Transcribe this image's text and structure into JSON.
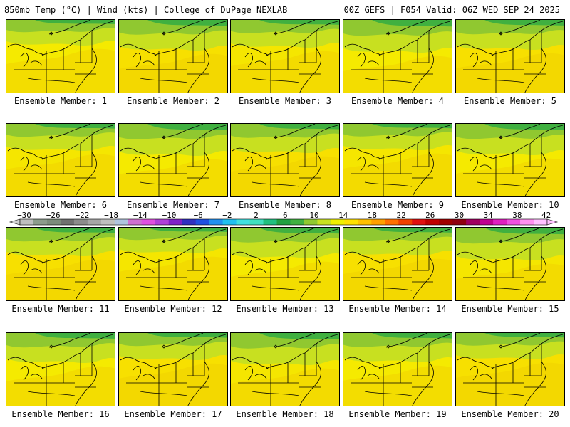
{
  "header": {
    "left_title": "850mb Temp (°C) | Wind (kts) | College of DuPage NEXLAB",
    "right_title": "00Z GEFS | F054 Valid: 06Z WED SEP 24 2025"
  },
  "colorbar": {
    "ticks": [
      "−30",
      "−26",
      "−22",
      "−18",
      "−14",
      "−10",
      "−6",
      "−2",
      "2",
      "6",
      "10",
      "14",
      "18",
      "22",
      "26",
      "30",
      "34",
      "38",
      "42"
    ],
    "colors": [
      "#bfbfbf",
      "#8c9c8c",
      "#7c8c7c",
      "#707070",
      "#8c8c8c",
      "#a6a6a6",
      "#bfbfbf",
      "#b0c4de",
      "#d070d0",
      "#e050e0",
      "#b040d8",
      "#8020c8",
      "#3030c0",
      "#2050e0",
      "#2090f0",
      "#20c0f0",
      "#40e0e0",
      "#40e0c0",
      "#20c080",
      "#20a040",
      "#40b040",
      "#90c830",
      "#c8e020",
      "#f0f000",
      "#ffe000",
      "#ffc000",
      "#ffa000",
      "#ff7000",
      "#f04000",
      "#e01010",
      "#c00000",
      "#a00000",
      "#900010",
      "#a00060",
      "#c00090",
      "#e020c0",
      "#f050e0",
      "#ff90f0",
      "#ffc0ff"
    ]
  },
  "panels": [
    {
      "label": "Ensemble Member: 1"
    },
    {
      "label": "Ensemble Member: 2"
    },
    {
      "label": "Ensemble Member: 3"
    },
    {
      "label": "Ensemble Member: 4"
    },
    {
      "label": "Ensemble Member: 5"
    },
    {
      "label": "Ensemble Member: 6"
    },
    {
      "label": "Ensemble Member: 7"
    },
    {
      "label": "Ensemble Member: 8"
    },
    {
      "label": "Ensemble Member: 9"
    },
    {
      "label": "Ensemble Member: 10"
    },
    {
      "label": "Ensemble Member: 11"
    },
    {
      "label": "Ensemble Member: 12"
    },
    {
      "label": "Ensemble Member: 13"
    },
    {
      "label": "Ensemble Member: 14"
    },
    {
      "label": "Ensemble Member: 15"
    },
    {
      "label": "Ensemble Member: 16"
    },
    {
      "label": "Ensemble Member: 17"
    },
    {
      "label": "Ensemble Member: 18"
    },
    {
      "label": "Ensemble Member: 19"
    },
    {
      "label": "Ensemble Member: 20"
    }
  ]
}
